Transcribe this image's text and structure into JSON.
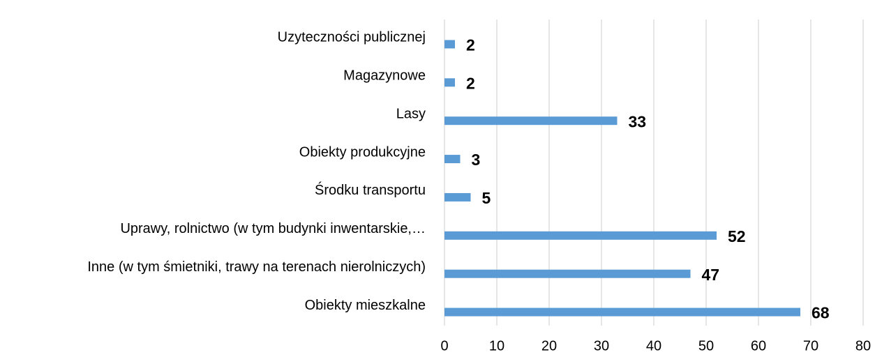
{
  "chart_data": {
    "type": "bar",
    "orientation": "horizontal",
    "categories": [
      "Uzyteczności publicznej",
      "Magazynowe",
      "Lasy",
      "Obiekty produkcyjne",
      "Środku transportu",
      "Uprawy, rolnictwo (w tym budynki inwentarskie,…",
      "Inne (w tym śmietniki, trawy na terenach nierolniczych)",
      "Obiekty mieszkalne"
    ],
    "values": [
      2,
      2,
      33,
      3,
      5,
      52,
      47,
      68
    ],
    "color": "#5b9bd5",
    "xlim": [
      0,
      80
    ],
    "xticks": [
      0,
      10,
      20,
      30,
      40,
      50,
      60,
      70,
      80
    ],
    "grid": true
  }
}
